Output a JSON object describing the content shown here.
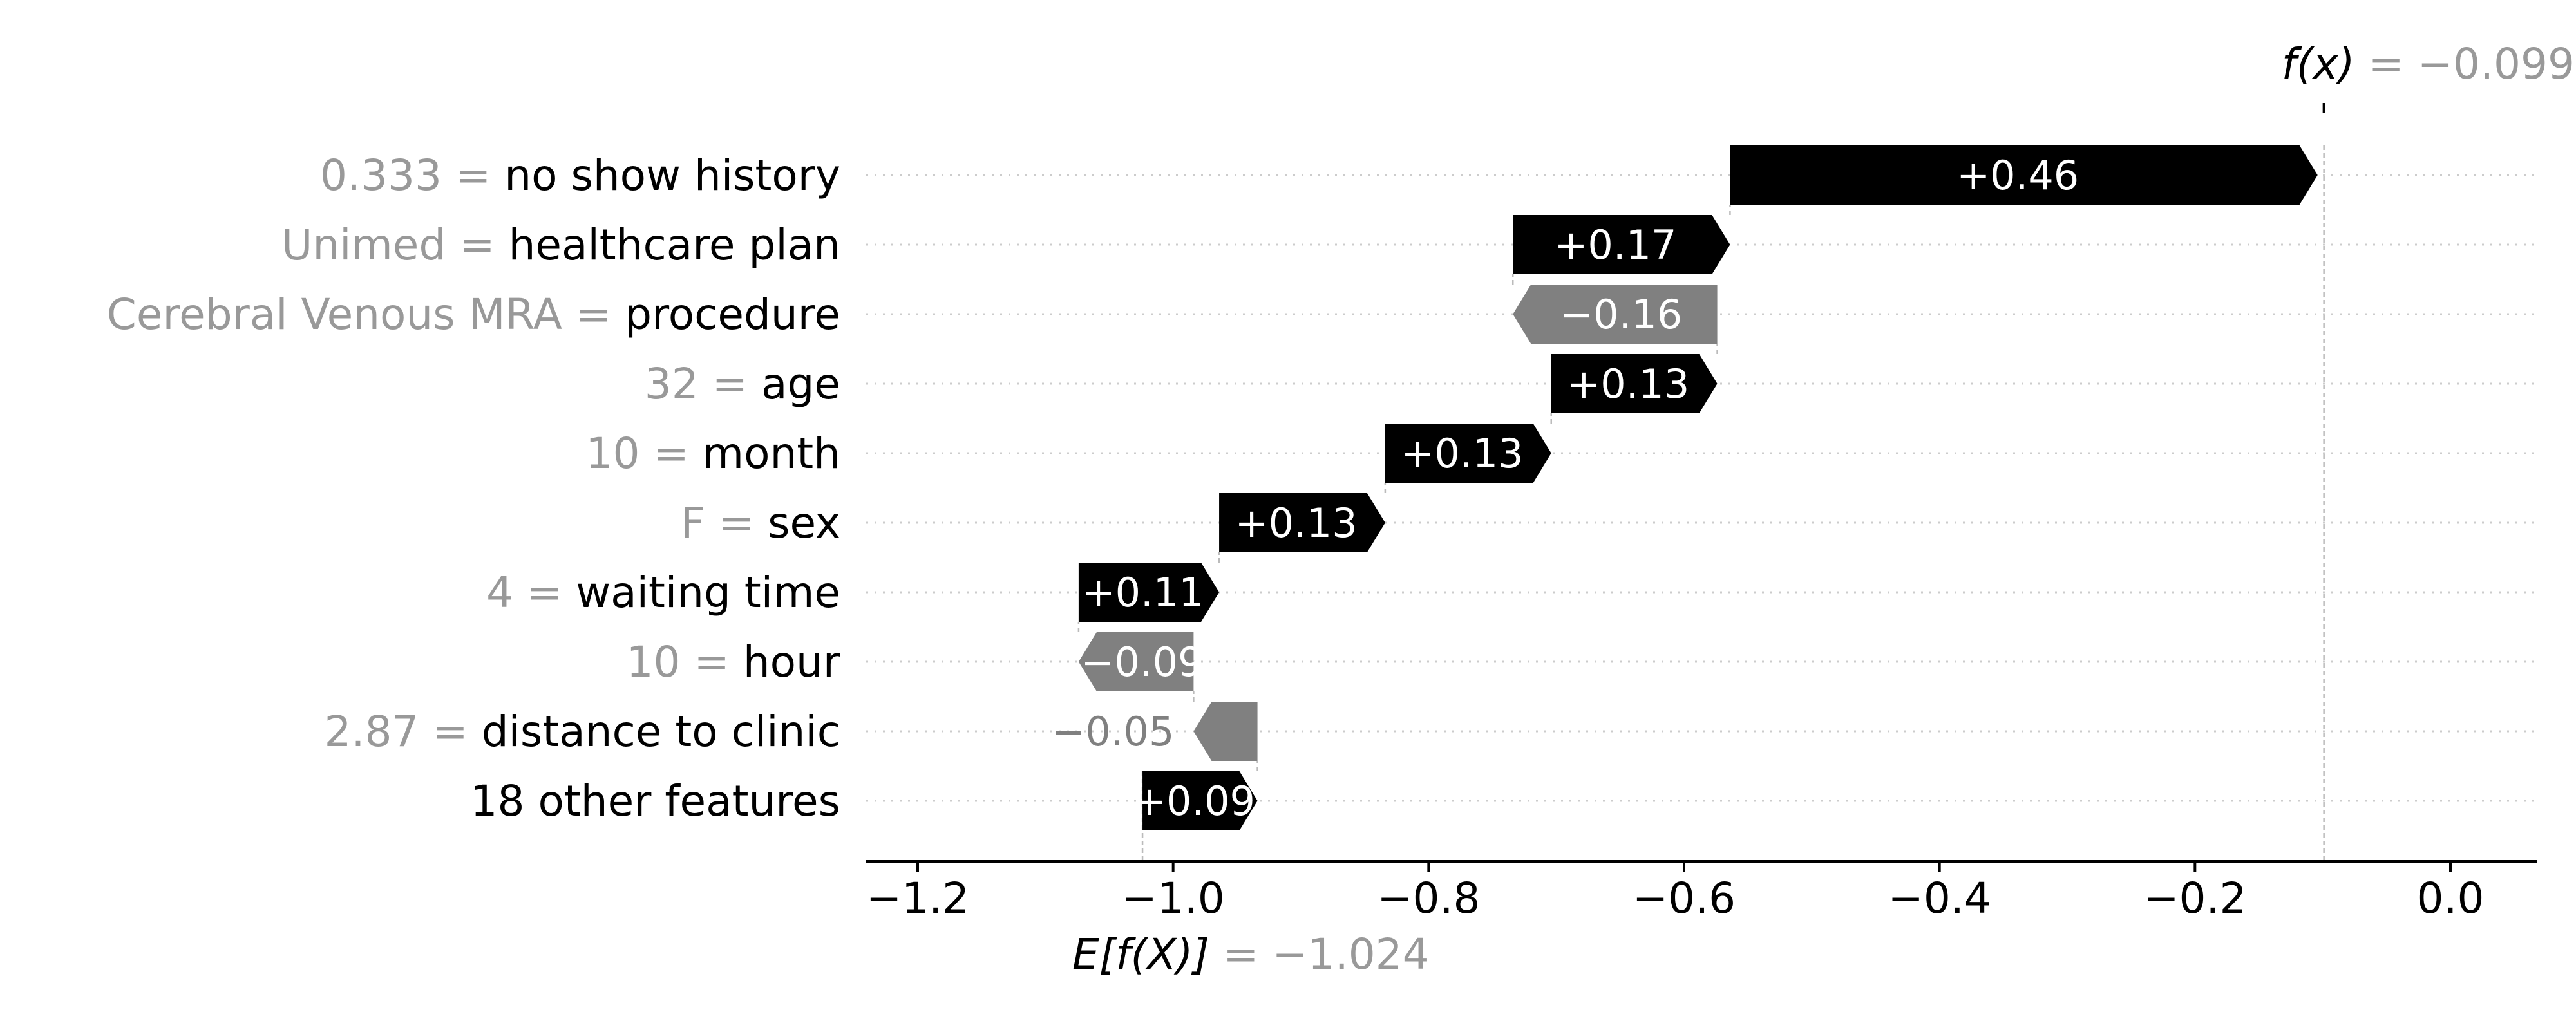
{
  "chart_data": {
    "type": "bar",
    "subtype": "waterfall",
    "base_value": -1.024,
    "output_value": -0.099,
    "base_label_expr": "E[f(X)]",
    "base_label_value": " = −1.024",
    "output_label_expr": "f(x)",
    "output_label_value": " = −0.099",
    "features": [
      {
        "value": "0.333",
        "name": "no show history",
        "contribution": 0.46,
        "label": "+0.46"
      },
      {
        "value": "Unimed",
        "name": "healthcare plan",
        "contribution": 0.17,
        "label": "+0.17"
      },
      {
        "value": "Cerebral Venous MRA",
        "name": "procedure",
        "contribution": -0.16,
        "label": "−0.16"
      },
      {
        "value": "32",
        "name": "age",
        "contribution": 0.13,
        "label": "+0.13"
      },
      {
        "value": "10",
        "name": "month",
        "contribution": 0.13,
        "label": "+0.13"
      },
      {
        "value": "F",
        "name": "sex",
        "contribution": 0.13,
        "label": "+0.13"
      },
      {
        "value": "4",
        "name": "waiting time",
        "contribution": 0.11,
        "label": "+0.11"
      },
      {
        "value": "10",
        "name": "hour",
        "contribution": -0.09,
        "label": "−0.09"
      },
      {
        "value": "2.87",
        "name": "distance to clinic",
        "contribution": -0.05,
        "label": "−0.05"
      },
      {
        "value": "",
        "name": "18 other features",
        "contribution": 0.09,
        "label": "+0.09"
      }
    ],
    "xlim": [
      -1.25,
      0.07
    ],
    "x_ticks": [
      -1.2,
      -1.0,
      -0.8,
      -0.6,
      -0.4,
      -0.2,
      0.0
    ],
    "x_tick_labels": [
      "−1.2",
      "−1.0",
      "−0.8",
      "−0.6",
      "−0.4",
      "−0.2",
      "0.0"
    ],
    "colors": {
      "positive": "#000000",
      "negative": "#808080",
      "value_text": "#999999",
      "grid": "#cccccc"
    }
  }
}
